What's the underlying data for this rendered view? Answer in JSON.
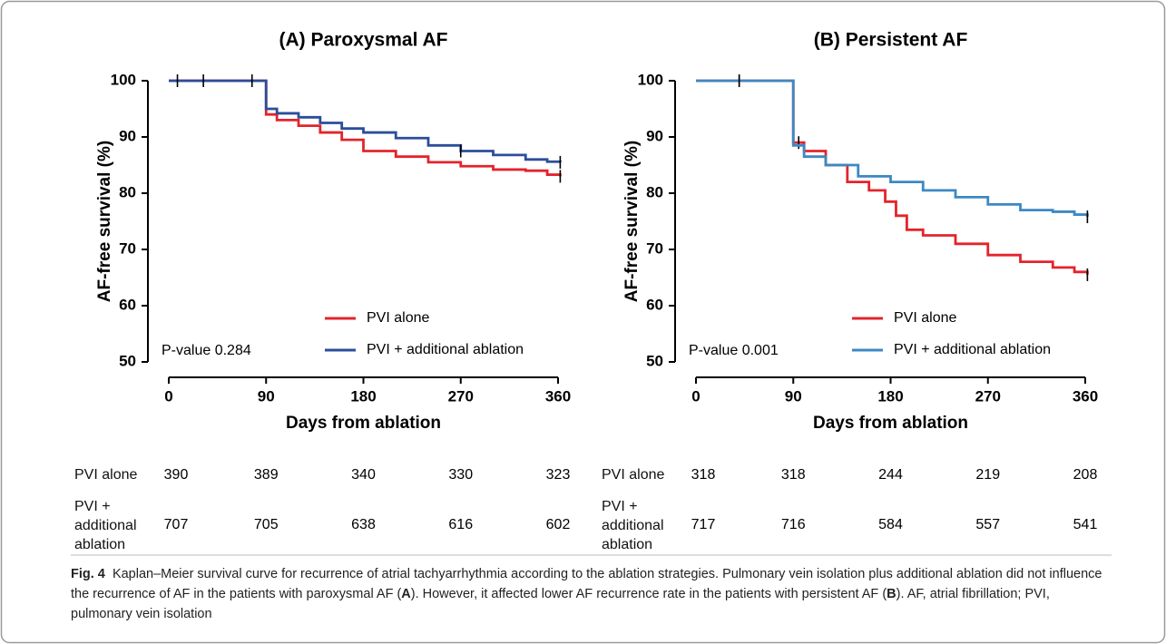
{
  "chart_data": [
    {
      "type": "line",
      "step": "post",
      "title": "(A) Paroxysmal AF",
      "x_label": "Days from ablation",
      "y_label": "AF-free survival (%)",
      "annotation": "P-value 0.284",
      "xlim": [
        0,
        360
      ],
      "xticks": [
        0,
        90,
        180,
        270,
        360
      ],
      "ylim": [
        50,
        100
      ],
      "yticks": [
        50,
        60,
        70,
        80,
        90,
        100
      ],
      "series": [
        {
          "name": "PVI alone",
          "color": "#e3242b",
          "x": [
            0,
            90,
            100,
            120,
            140,
            160,
            180,
            210,
            240,
            270,
            300,
            330,
            350,
            362
          ],
          "values": [
            100,
            94,
            93,
            92,
            90.8,
            89.5,
            87.5,
            86.5,
            85.5,
            84.8,
            84.2,
            84,
            83.3,
            83
          ],
          "censor": [
            362
          ]
        },
        {
          "name": "PVI + additional ablation",
          "color": "#2b4d9b",
          "x": [
            0,
            90,
            100,
            120,
            140,
            160,
            180,
            210,
            240,
            270,
            300,
            330,
            350,
            362
          ],
          "values": [
            100,
            95,
            94.2,
            93.5,
            92.5,
            91.5,
            90.8,
            89.8,
            88.5,
            87.5,
            86.8,
            86,
            85.6,
            85.5
          ],
          "censor": [
            8,
            32,
            77,
            270,
            362
          ]
        }
      ],
      "risk_table": {
        "rows": [
          {
            "label": "PVI alone",
            "values": [
              390,
              389,
              340,
              330,
              323
            ]
          },
          {
            "label": "PVI + additional ablation",
            "values": [
              707,
              705,
              638,
              616,
              602
            ]
          }
        ]
      }
    },
    {
      "type": "line",
      "step": "post",
      "title": "(B) Persistent AF",
      "x_label": "Days from ablation",
      "y_label": "AF-free survival (%)",
      "annotation": "P-value 0.001",
      "xlim": [
        0,
        360
      ],
      "xticks": [
        0,
        90,
        180,
        270,
        360
      ],
      "ylim": [
        50,
        100
      ],
      "yticks": [
        50,
        60,
        70,
        80,
        90,
        100
      ],
      "series": [
        {
          "name": "PVI alone",
          "color": "#e3242b",
          "x": [
            0,
            90,
            100,
            120,
            140,
            160,
            175,
            185,
            195,
            210,
            240,
            270,
            300,
            330,
            350,
            362
          ],
          "values": [
            100,
            89,
            87.5,
            85,
            82,
            80.5,
            78.5,
            76,
            73.5,
            72.5,
            71,
            69,
            67.8,
            66.8,
            66,
            65.5
          ],
          "censor": [
            40,
            95,
            362
          ]
        },
        {
          "name": "PVI + additional ablation",
          "color": "#3c88c4",
          "x": [
            0,
            90,
            100,
            120,
            150,
            180,
            210,
            240,
            270,
            300,
            330,
            350,
            362
          ],
          "values": [
            100,
            88.5,
            86.5,
            85,
            83,
            82,
            80.5,
            79.3,
            78,
            77,
            76.7,
            76.2,
            75.8
          ],
          "censor": [
            40,
            362
          ]
        }
      ],
      "risk_table": {
        "rows": [
          {
            "label": "PVI alone",
            "values": [
              318,
              318,
              244,
              219,
              208
            ]
          },
          {
            "label": "PVI + additional ablation",
            "values": [
              717,
              716,
              584,
              557,
              541
            ]
          }
        ]
      }
    }
  ],
  "caption": {
    "label": "Fig. 4",
    "parts": [
      "Kaplan–Meier survival curve for recurrence of atrial tachyarrhythmia according to the ablation strategies. Pulmonary vein isolation plus additional ablation did not influence the recurrence of AF in the patients with paroxysmal AF (",
      "A",
      "). However, it affected lower AF recurrence rate in the patients with persistent AF (",
      "B",
      "). AF, atrial fibrillation; PVI, pulmonary vein isolation"
    ]
  }
}
